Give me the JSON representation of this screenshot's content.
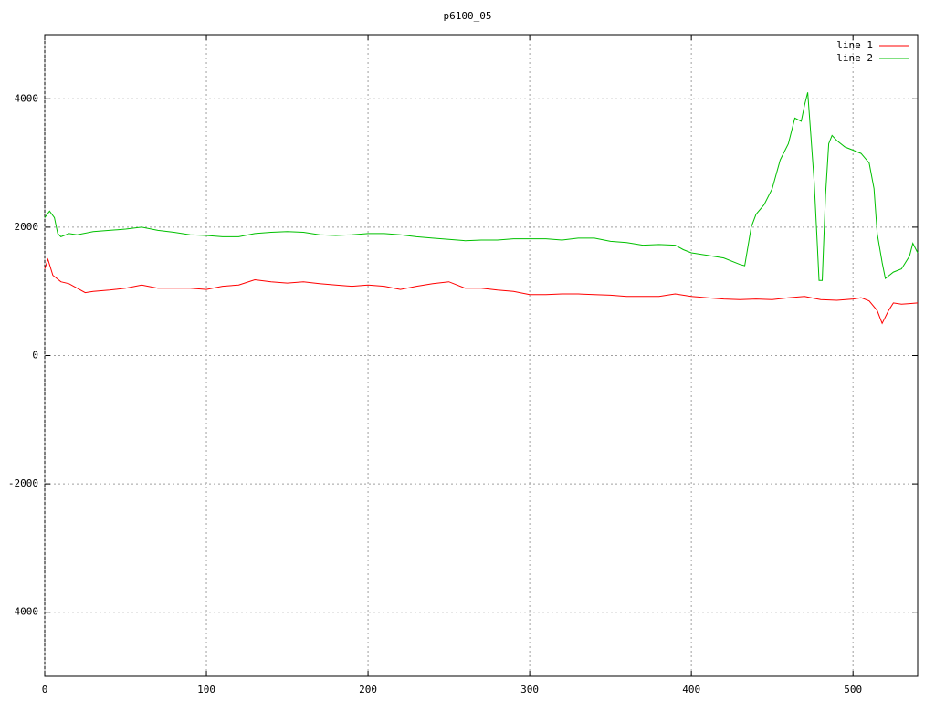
{
  "chart_data": {
    "type": "line",
    "title": "p6100_05",
    "xlim": [
      0,
      540
    ],
    "ylim": [
      -5000,
      5000
    ],
    "xticks": [
      0,
      100,
      200,
      300,
      400,
      500
    ],
    "yticks": [
      -4000,
      -2000,
      0,
      2000,
      4000
    ],
    "grid": true,
    "legend": "top-right",
    "series": [
      {
        "name": "line 1",
        "color": "#ff0000",
        "x": [
          0,
          2,
          5,
          10,
          15,
          20,
          25,
          30,
          40,
          50,
          60,
          70,
          80,
          90,
          100,
          110,
          120,
          130,
          140,
          150,
          160,
          170,
          180,
          190,
          200,
          210,
          220,
          230,
          240,
          250,
          260,
          270,
          280,
          290,
          300,
          310,
          320,
          330,
          340,
          350,
          360,
          370,
          380,
          390,
          400,
          410,
          420,
          430,
          440,
          450,
          460,
          470,
          480,
          490,
          500,
          505,
          510,
          515,
          518,
          522,
          525,
          530,
          535,
          540
        ],
        "values": [
          1350,
          1500,
          1250,
          1150,
          1120,
          1050,
          980,
          1000,
          1020,
          1050,
          1100,
          1050,
          1050,
          1050,
          1030,
          1080,
          1100,
          1180,
          1150,
          1130,
          1150,
          1120,
          1100,
          1080,
          1100,
          1080,
          1030,
          1080,
          1120,
          1150,
          1050,
          1050,
          1020,
          1000,
          950,
          950,
          960,
          960,
          950,
          940,
          920,
          920,
          920,
          960,
          920,
          900,
          880,
          870,
          880,
          870,
          900,
          920,
          870,
          860,
          880,
          900,
          850,
          700,
          500,
          700,
          820,
          800,
          810,
          820
        ]
      },
      {
        "name": "line 2",
        "color": "#00c000",
        "x": [
          0,
          3,
          6,
          8,
          10,
          15,
          20,
          30,
          40,
          50,
          60,
          70,
          80,
          90,
          100,
          110,
          120,
          130,
          140,
          150,
          160,
          170,
          180,
          190,
          200,
          210,
          220,
          230,
          240,
          250,
          260,
          270,
          280,
          290,
          300,
          310,
          320,
          330,
          340,
          350,
          360,
          370,
          380,
          390,
          395,
          400,
          410,
          420,
          430,
          433,
          437,
          440,
          445,
          450,
          455,
          460,
          464,
          468,
          470,
          472,
          474,
          476,
          478,
          479,
          481,
          483,
          485,
          487,
          490,
          495,
          500,
          505,
          510,
          513,
          515,
          518,
          520,
          525,
          530,
          535,
          537,
          540
        ],
        "values": [
          2150,
          2250,
          2150,
          1900,
          1850,
          1900,
          1880,
          1930,
          1950,
          1970,
          2000,
          1950,
          1920,
          1880,
          1870,
          1850,
          1850,
          1900,
          1920,
          1930,
          1920,
          1880,
          1870,
          1880,
          1900,
          1900,
          1880,
          1850,
          1830,
          1810,
          1790,
          1800,
          1800,
          1820,
          1820,
          1820,
          1800,
          1830,
          1830,
          1780,
          1760,
          1720,
          1730,
          1720,
          1650,
          1600,
          1560,
          1520,
          1420,
          1400,
          2000,
          2200,
          2350,
          2600,
          3050,
          3300,
          3700,
          3650,
          3900,
          4100,
          3400,
          2700,
          1700,
          1170,
          1170,
          2500,
          3300,
          3430,
          3350,
          3250,
          3200,
          3150,
          3000,
          2600,
          1900,
          1450,
          1200,
          1300,
          1350,
          1550,
          1750,
          1600
        ]
      }
    ]
  }
}
